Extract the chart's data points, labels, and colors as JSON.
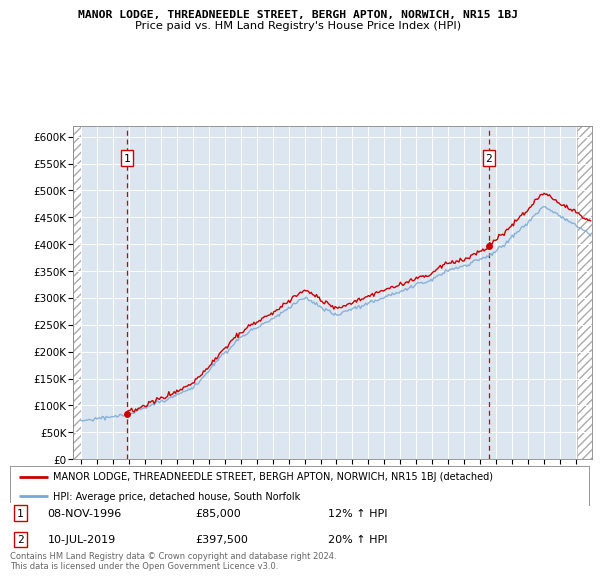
{
  "title": "MANOR LODGE, THREADNEEDLE STREET, BERGH APTON, NORWICH, NR15 1BJ",
  "subtitle": "Price paid vs. HM Land Registry's House Price Index (HPI)",
  "ylim": [
    0,
    620000
  ],
  "yticks": [
    0,
    50000,
    100000,
    150000,
    200000,
    250000,
    300000,
    350000,
    400000,
    450000,
    500000,
    550000,
    600000
  ],
  "ytick_labels": [
    "£0",
    "£50K",
    "£100K",
    "£150K",
    "£200K",
    "£250K",
    "£300K",
    "£350K",
    "£400K",
    "£450K",
    "£500K",
    "£550K",
    "£600K"
  ],
  "xlim_start": 1993.5,
  "xlim_end": 2026.0,
  "background_color": "#dce6f1",
  "grid_color": "#ffffff",
  "sale1_date": 1996.86,
  "sale1_price": 85000,
  "sale2_date": 2019.53,
  "sale2_price": 397500,
  "legend_label_red": "MANOR LODGE, THREADNEEDLE STREET, BERGH APTON, NORWICH, NR15 1BJ (detached)",
  "legend_label_blue": "HPI: Average price, detached house, South Norfolk",
  "note1_date": "08-NOV-1996",
  "note1_price": "£85,000",
  "note1_hpi": "12% ↑ HPI",
  "note2_date": "10-JUL-2019",
  "note2_price": "£397,500",
  "note2_hpi": "20% ↑ HPI",
  "footer": "Contains HM Land Registry data © Crown copyright and database right 2024.\nThis data is licensed under the Open Government Licence v3.0.",
  "red_color": "#cc0000",
  "blue_color": "#7ba7d4"
}
